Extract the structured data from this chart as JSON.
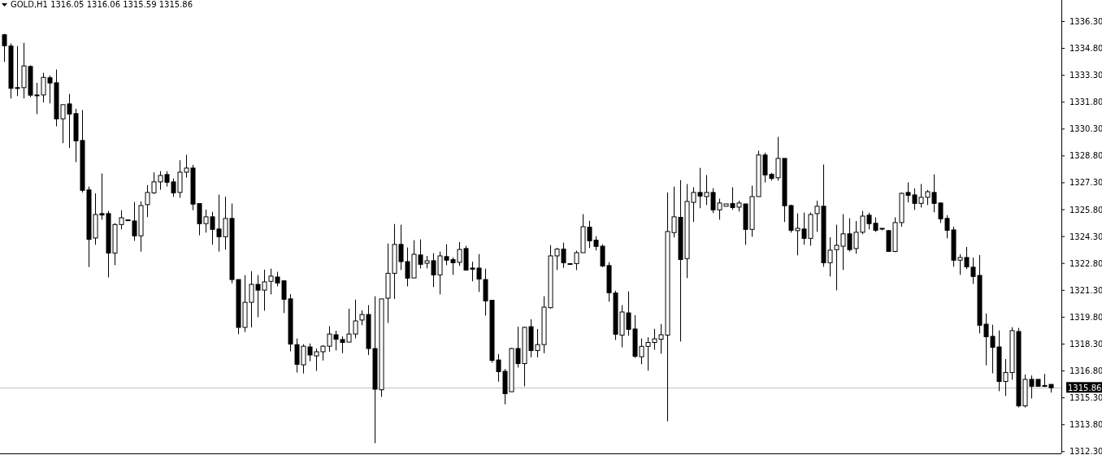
{
  "chart_data": {
    "type": "candlestick",
    "title": "GOLD,H1 1316.05 1316.06 1315.59 1315.86",
    "color": "#000000",
    "grid": false,
    "categories": [
      null,
      null,
      null,
      null,
      null,
      null,
      null,
      null,
      null,
      null,
      null,
      null,
      null,
      null,
      null,
      null,
      null,
      null,
      null,
      null,
      null,
      null,
      null,
      null,
      null,
      null,
      null,
      null,
      null,
      null,
      null,
      null,
      null,
      null,
      null,
      null,
      null,
      null,
      null,
      null,
      null,
      null,
      null,
      null,
      null,
      null,
      null,
      null,
      null,
      null,
      null,
      null,
      null,
      null,
      null,
      null,
      null,
      null,
      null,
      null,
      null,
      null,
      null,
      null,
      null,
      null,
      null,
      null,
      null,
      null,
      null,
      null,
      null,
      null,
      null,
      null,
      null,
      null,
      null,
      null,
      null,
      null,
      null,
      null,
      null,
      null,
      null,
      null,
      null,
      null,
      null,
      null,
      null,
      null,
      null,
      null,
      null,
      null,
      null,
      null,
      null,
      null,
      null,
      null,
      null,
      null,
      null,
      null,
      null,
      null,
      null,
      null,
      null,
      null,
      null,
      null,
      null,
      null,
      null,
      null,
      null,
      null,
      null,
      null,
      null,
      null,
      null,
      null,
      null,
      null,
      null,
      null,
      null,
      null,
      null,
      null,
      null,
      null,
      null,
      null,
      null,
      null,
      null,
      null,
      null,
      null,
      null,
      null,
      null,
      null,
      null,
      null,
      null,
      null,
      null,
      null,
      null,
      null,
      null,
      null,
      null,
      null
    ],
    "ohlc": [
      [
        1335.56,
        1335.61,
        1334.05,
        1334.95
      ],
      [
        1334.93,
        1335.08,
        1332.0,
        1332.57
      ],
      [
        1332.61,
        1334.93,
        1332.14,
        1332.57
      ],
      [
        1332.61,
        1335.11,
        1332.0,
        1333.82
      ],
      [
        1333.79,
        1333.85,
        1332.08,
        1332.19
      ],
      [
        1332.2,
        1332.88,
        1331.14,
        1332.2
      ],
      [
        1332.2,
        1333.44,
        1331.78,
        1333.18
      ],
      [
        1333.16,
        1333.29,
        1331.73,
        1332.87
      ],
      [
        1332.88,
        1333.62,
        1330.45,
        1330.87
      ],
      [
        1330.87,
        1331.66,
        1329.51,
        1331.66
      ],
      [
        1331.7,
        1332.26,
        1329.24,
        1331.14
      ],
      [
        1331.16,
        1331.43,
        1328.45,
        1329.64
      ],
      [
        1329.66,
        1331.36,
        1326.76,
        1326.88
      ],
      [
        1326.9,
        1327.09,
        1322.6,
        1324.14
      ],
      [
        1324.22,
        1326.71,
        1323.84,
        1325.53
      ],
      [
        1325.58,
        1327.82,
        1325.24,
        1325.5
      ],
      [
        1325.58,
        1325.73,
        1322.02,
        1323.38
      ],
      [
        1323.38,
        1325.05,
        1322.7,
        1324.97
      ],
      [
        1324.97,
        1325.77,
        1324.7,
        1325.35
      ],
      [
        1325.23,
        1325.23,
        1325.23,
        1325.23
      ],
      [
        1325.17,
        1326.23,
        1324.06,
        1324.34
      ],
      [
        1324.34,
        1326.26,
        1323.46,
        1326.03
      ],
      [
        1326.08,
        1327.17,
        1325.38,
        1326.76
      ],
      [
        1326.74,
        1327.88,
        1326.68,
        1327.35
      ],
      [
        1327.35,
        1327.95,
        1326.91,
        1327.71
      ],
      [
        1327.76,
        1327.95,
        1327.09,
        1327.33
      ],
      [
        1327.35,
        1327.54,
        1326.51,
        1326.74
      ],
      [
        1326.76,
        1328.56,
        1326.46,
        1327.89
      ],
      [
        1327.89,
        1328.86,
        1327.59,
        1328.12
      ],
      [
        1328.12,
        1328.3,
        1325.77,
        1326.11
      ],
      [
        1326.14,
        1326.14,
        1324.37,
        1325.02
      ],
      [
        1325.02,
        1325.81,
        1324.52,
        1325.4
      ],
      [
        1325.4,
        1325.68,
        1323.84,
        1324.7
      ],
      [
        1324.72,
        1326.64,
        1323.46,
        1324.29
      ],
      [
        1324.29,
        1326.53,
        1323.57,
        1325.31
      ],
      [
        1325.31,
        1326.14,
        1321.69,
        1321.9
      ],
      [
        1321.9,
        1321.9,
        1318.85,
        1319.23
      ],
      [
        1319.23,
        1322.15,
        1318.97,
        1320.63
      ],
      [
        1320.63,
        1322.37,
        1319.23,
        1321.63
      ],
      [
        1321.63,
        1322.15,
        1319.8,
        1321.31
      ],
      [
        1321.31,
        1322.45,
        1320.16,
        1321.77
      ],
      [
        1321.8,
        1322.51,
        1321.07,
        1322.09
      ],
      [
        1322.04,
        1322.33,
        1321.52,
        1321.71
      ],
      [
        1321.83,
        1321.83,
        1320.03,
        1320.8
      ],
      [
        1320.82,
        1321.09,
        1317.89,
        1318.3
      ],
      [
        1318.27,
        1318.61,
        1316.71,
        1317.17
      ],
      [
        1317.14,
        1318.29,
        1316.66,
        1318.18
      ],
      [
        1318.14,
        1318.33,
        1317.34,
        1317.69
      ],
      [
        1317.64,
        1318.05,
        1316.8,
        1317.87
      ],
      [
        1317.87,
        1318.24,
        1317.38,
        1318.18
      ],
      [
        1318.18,
        1319.3,
        1317.87,
        1318.86
      ],
      [
        1318.82,
        1319.05,
        1317.94,
        1318.57
      ],
      [
        1318.55,
        1318.73,
        1317.79,
        1318.39
      ],
      [
        1318.41,
        1320.28,
        1318.41,
        1318.86
      ],
      [
        1318.86,
        1320.78,
        1318.62,
        1319.59
      ],
      [
        1319.64,
        1320.18,
        1319.35,
        1319.95
      ],
      [
        1319.95,
        1320.47,
        1317.69,
        1318.05
      ],
      [
        1318.05,
        1320.97,
        1312.77,
        1315.78
      ],
      [
        1315.75,
        1320.82,
        1315.35,
        1320.82
      ],
      [
        1320.86,
        1323.91,
        1319.48,
        1322.25
      ],
      [
        1322.25,
        1325.0,
        1320.82,
        1323.86
      ],
      [
        1323.86,
        1324.96,
        1322.43,
        1322.9
      ],
      [
        1322.9,
        1323.69,
        1321.52,
        1321.98
      ],
      [
        1321.99,
        1324.1,
        1321.99,
        1323.31
      ],
      [
        1323.27,
        1324.14,
        1322.52,
        1322.75
      ],
      [
        1322.81,
        1323.22,
        1322.52,
        1322.95
      ],
      [
        1322.95,
        1323.37,
        1321.48,
        1322.16
      ],
      [
        1322.16,
        1323.46,
        1321.07,
        1323.22
      ],
      [
        1323.18,
        1323.87,
        1322.7,
        1322.98
      ],
      [
        1323.01,
        1323.14,
        1322.16,
        1322.84
      ],
      [
        1322.86,
        1323.99,
        1322.66,
        1323.58
      ],
      [
        1323.63,
        1323.78,
        1322.43,
        1322.43
      ],
      [
        1322.54,
        1322.9,
        1321.8,
        1322.48
      ],
      [
        1322.54,
        1323.32,
        1321.21,
        1321.93
      ],
      [
        1321.9,
        1322.51,
        1319.89,
        1320.71
      ],
      [
        1320.74,
        1320.74,
        1317.26,
        1317.39
      ],
      [
        1317.41,
        1317.74,
        1316.2,
        1316.76
      ],
      [
        1316.78,
        1316.91,
        1314.94,
        1315.53
      ],
      [
        1315.64,
        1318.09,
        1315.64,
        1318.05
      ],
      [
        1318.05,
        1319.27,
        1316.99,
        1317.21
      ],
      [
        1317.21,
        1319.27,
        1315.94,
        1319.23
      ],
      [
        1319.27,
        1319.68,
        1317.56,
        1317.94
      ],
      [
        1317.94,
        1319.14,
        1317.56,
        1318.27
      ],
      [
        1318.27,
        1320.97,
        1317.79,
        1320.36
      ],
      [
        1320.33,
        1323.82,
        1320.28,
        1323.22
      ],
      [
        1323.22,
        1323.67,
        1322.43,
        1323.6
      ],
      [
        1323.6,
        1323.96,
        1322.55,
        1322.84
      ],
      [
        1322.79,
        1322.79,
        1322.79,
        1322.79
      ],
      [
        1322.79,
        1323.51,
        1322.43,
        1323.4
      ],
      [
        1323.4,
        1325.55,
        1323.4,
        1324.85
      ],
      [
        1324.82,
        1325.18,
        1323.66,
        1324.06
      ],
      [
        1324.1,
        1324.32,
        1323.52,
        1323.75
      ],
      [
        1323.76,
        1323.87,
        1322.59,
        1322.66
      ],
      [
        1322.68,
        1322.87,
        1320.66,
        1321.16
      ],
      [
        1321.15,
        1321.28,
        1318.53,
        1318.85
      ],
      [
        1318.8,
        1320.47,
        1318.12,
        1320.09
      ],
      [
        1320.04,
        1321.24,
        1318.76,
        1319.12
      ],
      [
        1319.14,
        1319.91,
        1317.53,
        1317.62
      ],
      [
        1317.59,
        1318.61,
        1317.17,
        1318.17
      ],
      [
        1318.17,
        1318.68,
        1316.82,
        1318.39
      ],
      [
        1318.39,
        1319.15,
        1317.98,
        1318.59
      ],
      [
        1318.57,
        1319.42,
        1317.76,
        1318.82
      ],
      [
        1318.8,
        1326.76,
        1313.99,
        1324.58
      ],
      [
        1324.52,
        1327.09,
        1324.25,
        1325.4
      ],
      [
        1325.37,
        1327.45,
        1318.44,
        1323.02
      ],
      [
        1323.07,
        1327.23,
        1321.98,
        1326.26
      ],
      [
        1326.21,
        1327.05,
        1325.11,
        1326.76
      ],
      [
        1326.76,
        1328.13,
        1325.88,
        1326.56
      ],
      [
        1326.53,
        1327.73,
        1326.06,
        1326.76
      ],
      [
        1326.76,
        1327.0,
        1325.61,
        1325.79
      ],
      [
        1325.79,
        1326.41,
        1325.24,
        1326.17
      ],
      [
        1325.99,
        1326.12,
        1325.99,
        1326.12
      ],
      [
        1326.14,
        1327.05,
        1325.79,
        1325.92
      ],
      [
        1325.94,
        1326.3,
        1325.7,
        1326.17
      ],
      [
        1326.12,
        1326.12,
        1323.84,
        1324.7
      ],
      [
        1324.7,
        1327.14,
        1324.29,
        1326.53
      ],
      [
        1326.53,
        1329.09,
        1326.53,
        1328.85
      ],
      [
        1328.85,
        1328.98,
        1327.32,
        1327.74
      ],
      [
        1327.77,
        1327.85,
        1327.42,
        1327.54
      ],
      [
        1327.58,
        1329.86,
        1327.42,
        1328.66
      ],
      [
        1328.66,
        1328.66,
        1325.11,
        1326.02
      ],
      [
        1326.03,
        1326.08,
        1324.52,
        1324.65
      ],
      [
        1324.63,
        1325.59,
        1323.25,
        1324.76
      ],
      [
        1324.72,
        1325.64,
        1323.84,
        1324.2
      ],
      [
        1324.2,
        1325.64,
        1323.79,
        1325.53
      ],
      [
        1325.58,
        1326.3,
        1324.56,
        1325.99
      ],
      [
        1325.99,
        1328.32,
        1322.61,
        1322.84
      ],
      [
        1322.84,
        1324.26,
        1322.07,
        1323.54
      ],
      [
        1323.57,
        1324.96,
        1321.3,
        1323.81
      ],
      [
        1323.76,
        1325.55,
        1322.43,
        1324.45
      ],
      [
        1324.45,
        1325.32,
        1323.47,
        1323.57
      ],
      [
        1323.63,
        1325.17,
        1323.34,
        1324.54
      ],
      [
        1324.54,
        1325.73,
        1324.43,
        1325.44
      ],
      [
        1325.49,
        1325.63,
        1324.7,
        1325.02
      ],
      [
        1325.04,
        1325.37,
        1324.56,
        1324.65
      ],
      [
        1324.76,
        1324.76,
        1324.65,
        1324.76
      ],
      [
        1324.63,
        1324.67,
        1323.47,
        1323.47
      ],
      [
        1323.47,
        1325.37,
        1323.43,
        1325.08
      ],
      [
        1325.08,
        1326.76,
        1324.85,
        1326.71
      ],
      [
        1326.76,
        1327.32,
        1326.2,
        1326.6
      ],
      [
        1326.62,
        1326.99,
        1325.79,
        1326.15
      ],
      [
        1326.15,
        1327.23,
        1325.92,
        1326.49
      ],
      [
        1326.49,
        1326.9,
        1326.06,
        1326.8
      ],
      [
        1326.76,
        1327.77,
        1325.65,
        1326.15
      ],
      [
        1326.17,
        1326.21,
        1325.06,
        1325.29
      ],
      [
        1325.31,
        1325.49,
        1324.2,
        1324.65
      ],
      [
        1324.67,
        1324.85,
        1322.61,
        1322.98
      ],
      [
        1322.98,
        1323.31,
        1322.16,
        1323.13
      ],
      [
        1323.13,
        1323.72,
        1322.48,
        1322.61
      ],
      [
        1322.59,
        1323.13,
        1321.66,
        1322.07
      ],
      [
        1322.13,
        1323.27,
        1318.89,
        1319.35
      ],
      [
        1319.41,
        1320.01,
        1317.12,
        1318.71
      ],
      [
        1318.73,
        1319.38,
        1316.67,
        1318.12
      ],
      [
        1318.14,
        1319.06,
        1315.67,
        1316.21
      ],
      [
        1316.21,
        1317.46,
        1315.4,
        1316.71
      ],
      [
        1316.71,
        1319.24,
        1316.31,
        1319.05
      ],
      [
        1319.0,
        1319.2,
        1314.76,
        1314.85
      ],
      [
        1314.85,
        1316.6,
        1314.76,
        1316.33
      ],
      [
        1316.33,
        1316.55,
        1315.26,
        1315.94
      ],
      [
        1316.33,
        1316.33,
        1315.94,
        1315.94
      ],
      [
        1315.99,
        1316.63,
        1315.9,
        1315.94
      ],
      [
        1316.05,
        1316.06,
        1315.59,
        1315.86
      ]
    ],
    "ylim": [
      1312.2,
      1337.5
    ],
    "yticks": [
      {
        "value": 1336.3,
        "label": "1336.30"
      },
      {
        "value": 1334.8,
        "label": "1334.80"
      },
      {
        "value": 1333.3,
        "label": "1333.30"
      },
      {
        "value": 1331.8,
        "label": "1331.80"
      },
      {
        "value": 1330.3,
        "label": "1330.30"
      },
      {
        "value": 1328.8,
        "label": "1328.80"
      },
      {
        "value": 1327.3,
        "label": "1327.30"
      },
      {
        "value": 1325.8,
        "label": "1325.80"
      },
      {
        "value": 1324.3,
        "label": "1324.30"
      },
      {
        "value": 1322.8,
        "label": "1322.80"
      },
      {
        "value": 1321.3,
        "label": "1321.30"
      },
      {
        "value": 1319.8,
        "label": "1319.80"
      },
      {
        "value": 1318.3,
        "label": "1318.30"
      },
      {
        "value": 1316.8,
        "label": "1316.80"
      },
      {
        "value": 1315.3,
        "label": "1315.30"
      },
      {
        "value": 1313.8,
        "label": "1313.80"
      },
      {
        "value": 1312.3,
        "label": "1312.30"
      }
    ],
    "ref_lines": [
      {
        "axis": "y",
        "value": 1315.86,
        "label": "1315.86",
        "color": "#c0c0c0"
      }
    ]
  }
}
